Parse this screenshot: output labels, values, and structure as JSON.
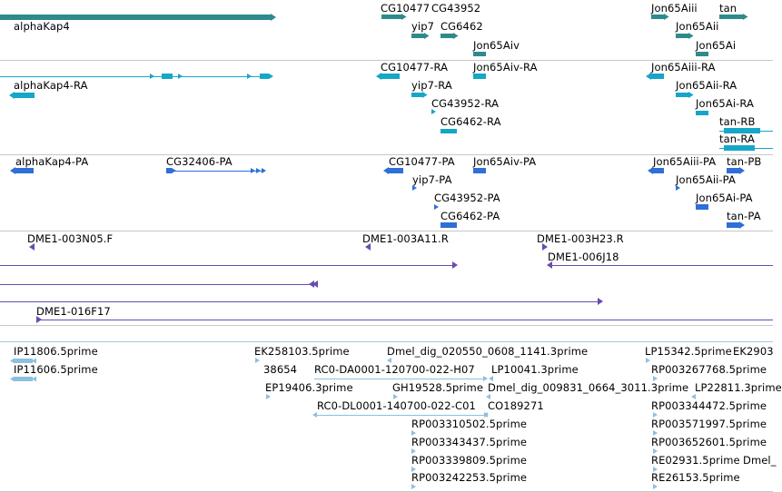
{
  "colors": {
    "gene": "#2e8b8b",
    "transcript": "#16a6c8",
    "protein": "#2e6fd8",
    "clone": "#6a4bb0",
    "est": "#8cc0e0",
    "separator": "#c8c8c8",
    "separator_est": "#a8c8dc"
  },
  "tracks": {
    "genes": [
      "alphaKap4",
      "CG10477",
      "CG43952",
      "yip7",
      "CG6462",
      "Jon65Aiv",
      "Jon65Aiii",
      "tan",
      "Jon65Aii",
      "Jon65Ai"
    ],
    "transcripts": [
      "CG10477-RA",
      "Jon65Aiv-RA",
      "Jon65Aiii-RA",
      "alphaKap4-RA",
      "yip7-RA",
      "Jon65Aii-RA",
      "CG43952-RA",
      "Jon65Ai-RA",
      "CG6462-RA",
      "tan-RB",
      "tan-RA"
    ],
    "proteins": [
      "alphaKap4-PA",
      "CG32406-PA",
      "CG10477-PA",
      "Jon65Aiv-PA",
      "Jon65Aiii-PA",
      "tan-PB",
      "yip7-PA",
      "Jon65Aii-PA",
      "CG43952-PA",
      "Jon65Ai-PA",
      "CG6462-PA",
      "tan-PA"
    ],
    "clones": [
      "DME1-003N05.F",
      "DME1-003A11.R",
      "DME1-003H23.R",
      "DME1-006J18",
      "DME1-016F17"
    ],
    "ests": [
      "IP11806.5prime",
      "EK258103.5prime",
      "Dmel_dig_020550_0608_1141.3prime",
      "LP15342.5prime",
      "EK2903",
      "IP11606.5prime",
      "38654",
      "RC0-DA0001-120700-022-H07",
      "LP10041.3prime",
      "RP003267768.5prime",
      "EP19406.3prime",
      "GH19528.5prime",
      "Dmel_dig_009831_0664_3011.3prime",
      "LP22811.3prime",
      "RC0-DL0001-140700-022-C01",
      "CO189271",
      "RP003344472.5prime",
      "RP003310502.5prime",
      "RP003571997.5prime",
      "RP003343437.5prime",
      "RP003652601.5prime",
      "RP003339809.5prime",
      "RE02931.5prime",
      "Dmel_",
      "RP003242253.5prime",
      "RE26153.5prime"
    ]
  }
}
